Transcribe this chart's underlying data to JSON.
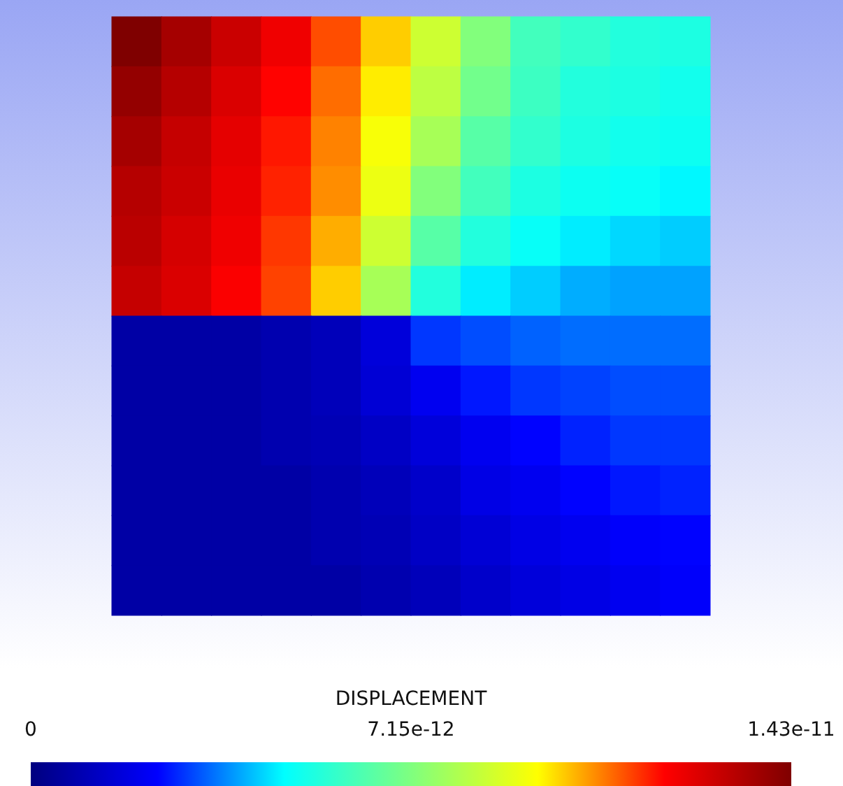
{
  "chart_data": {
    "type": "heatmap",
    "clabel": "DISPLACEMENT",
    "categories": [
      null,
      null,
      null,
      null,
      null,
      null,
      null,
      null,
      null,
      null,
      null,
      null
    ],
    "y_categories": [
      null,
      null,
      null,
      null,
      null,
      null,
      null,
      null,
      null,
      null,
      null,
      null
    ],
    "cells": [
      [
        1.43e-11,
        1.36e-11,
        1.29e-11,
        1.22e-11,
        1.12e-11,
        1e-11,
        8.6e-12,
        7.2e-12,
        6e-12,
        5.7e-12,
        5.4e-12,
        5.3e-12
      ],
      [
        1.39e-11,
        1.33e-11,
        1.26e-11,
        1.19e-11,
        1.09e-11,
        9.7e-12,
        8.3e-12,
        6.9e-12,
        5.9e-12,
        5.4e-12,
        5.3e-12,
        5.1e-12
      ],
      [
        1.36e-11,
        1.3e-11,
        1.24e-11,
        1.17e-11,
        1.07e-11,
        9.4e-12,
        7.9e-12,
        6.4e-12,
        5.7e-12,
        5.3e-12,
        5.1e-12,
        5e-12
      ],
      [
        1.33e-11,
        1.29e-11,
        1.23e-11,
        1.16e-11,
        1.06e-11,
        9.2e-12,
        7.2e-12,
        6e-12,
        5.3e-12,
        5e-12,
        4.9e-12,
        4.7e-12
      ],
      [
        1.32e-11,
        1.27e-11,
        1.22e-11,
        1.14e-11,
        1.03e-11,
        8.6e-12,
        6.4e-12,
        5.4e-12,
        4.9e-12,
        4.6e-12,
        4.4e-12,
        4.3e-12
      ],
      [
        1.3e-11,
        1.26e-11,
        1.2e-11,
        1.13e-11,
        1e-11,
        7.9e-12,
        5.4e-12,
        4.6e-12,
        4.3e-12,
        4e-12,
        3.9e-12,
        3.9e-12
      ],
      [
        7e-13,
        7e-13,
        7e-13,
        9e-13,
        1.1e-12,
        1.7e-12,
        2.9e-12,
        3.1e-12,
        3.3e-12,
        3.4e-12,
        3.4e-12,
        3.4e-12
      ],
      [
        7e-13,
        7e-13,
        7e-13,
        9e-13,
        1.1e-12,
        1.6e-12,
        2.1e-12,
        2.6e-12,
        2.9e-12,
        3e-12,
        3.1e-12,
        3.1e-12
      ],
      [
        7e-13,
        7e-13,
        7e-13,
        9e-13,
        1e-12,
        1.3e-12,
        1.7e-12,
        2.1e-12,
        2.4e-12,
        2.7e-12,
        2.9e-12,
        2.9e-12
      ],
      [
        7e-13,
        7e-13,
        7e-13,
        7e-13,
        9e-13,
        1.1e-12,
        1.4e-12,
        1.9e-12,
        2.1e-12,
        2.4e-12,
        2.6e-12,
        2.7e-12
      ],
      [
        7e-13,
        7e-13,
        7e-13,
        7e-13,
        9e-13,
        1e-12,
        1.3e-12,
        1.6e-12,
        1.9e-12,
        2.1e-12,
        2.3e-12,
        2.4e-12
      ],
      [
        7e-13,
        7e-13,
        7e-13,
        7e-13,
        7e-13,
        9e-13,
        1.1e-12,
        1.4e-12,
        1.7e-12,
        1.9e-12,
        2.1e-12,
        2.3e-12
      ]
    ],
    "clim": [
      0,
      1.43e-11
    ],
    "cticks": [
      {
        "value": 0,
        "label": "0"
      },
      {
        "value": 7.15e-12,
        "label": "7.15e-12"
      },
      {
        "value": 1.43e-11,
        "label": "1.43e-11"
      }
    ],
    "tick_labels": false
  }
}
